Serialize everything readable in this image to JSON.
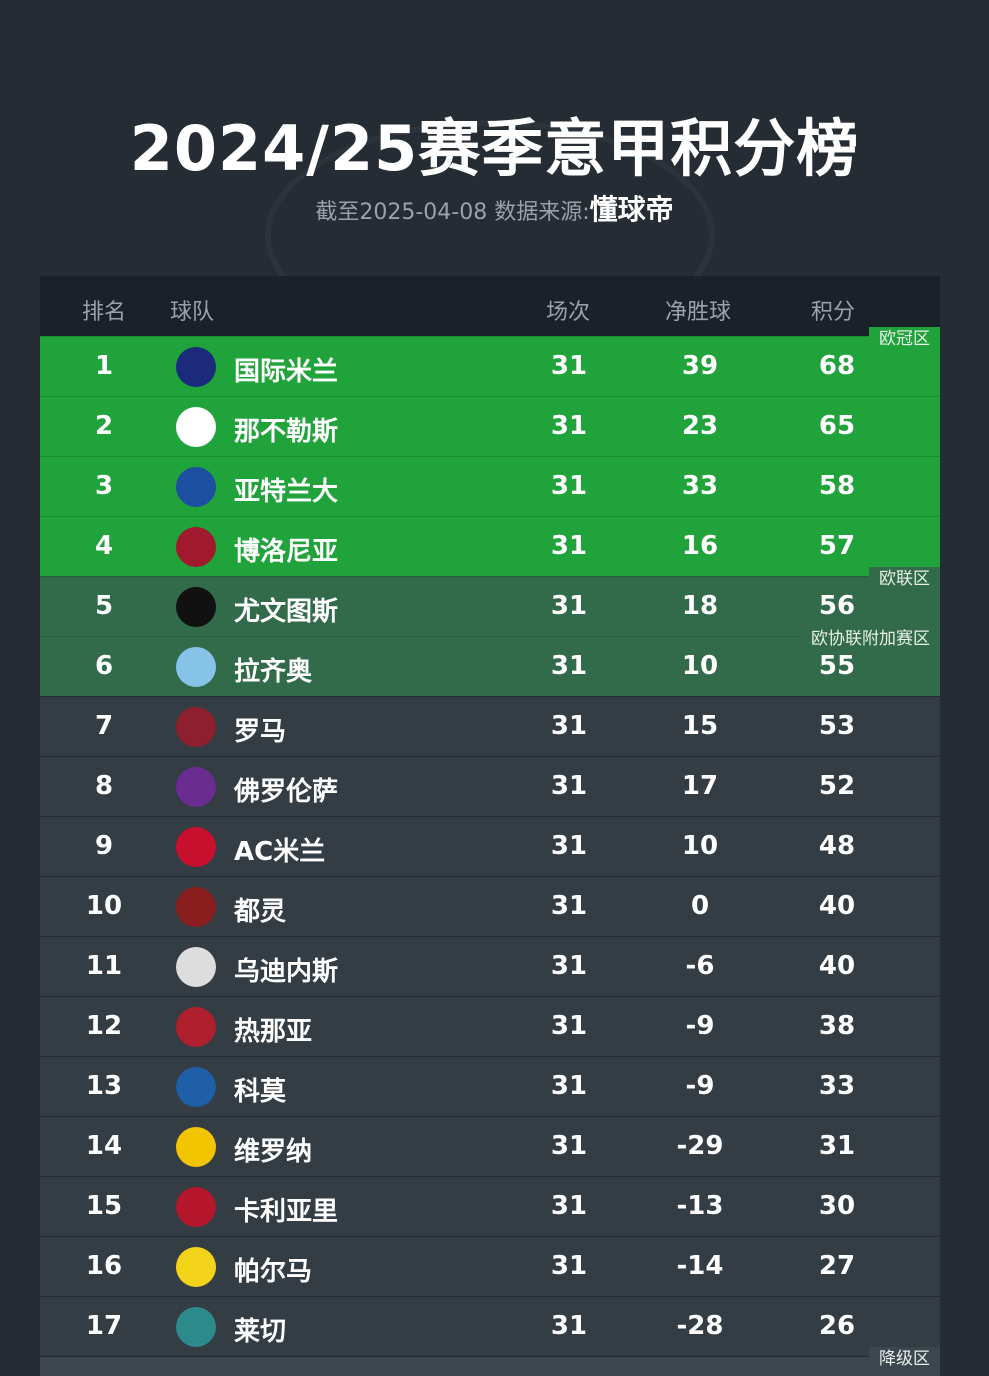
{
  "title": "2024/25赛季意甲积分榜",
  "subtitle": {
    "prefix": "截至2025-04-08 数据来源:",
    "source": "懂球帝"
  },
  "columns": {
    "rank": "排名",
    "team": "球队",
    "played": "场次",
    "gd": "净胜球",
    "points": "积分"
  },
  "zones": {
    "cl": "欧冠区",
    "el": "欧联区",
    "conf": "欧协联附加赛区",
    "rel": "降级区"
  },
  "colors": {
    "cl": "#20a33a",
    "el": "#316b4a",
    "row": "#343c44",
    "header": "#1b2128"
  },
  "rows": [
    {
      "rank": "1",
      "team": "国际米兰",
      "played": "31",
      "gd": "39",
      "pts": "68",
      "logo": "inter-logo",
      "color": "#1b2a7a"
    },
    {
      "rank": "2",
      "team": "那不勒斯",
      "played": "31",
      "gd": "23",
      "pts": "65",
      "logo": "napoli-logo",
      "color": "#ffffff"
    },
    {
      "rank": "3",
      "team": "亚特兰大",
      "played": "31",
      "gd": "33",
      "pts": "58",
      "logo": "atalanta-logo",
      "color": "#1c4fa0"
    },
    {
      "rank": "4",
      "team": "博洛尼亚",
      "played": "31",
      "gd": "16",
      "pts": "57",
      "logo": "bologna-logo",
      "color": "#a1192c"
    },
    {
      "rank": "5",
      "team": "尤文图斯",
      "played": "31",
      "gd": "18",
      "pts": "56",
      "logo": "juventus-logo",
      "color": "#111111"
    },
    {
      "rank": "6",
      "team": "拉齐奥",
      "played": "31",
      "gd": "10",
      "pts": "55",
      "logo": "lazio-logo",
      "color": "#87c3e8"
    },
    {
      "rank": "7",
      "team": "罗马",
      "played": "31",
      "gd": "15",
      "pts": "53",
      "logo": "roma-logo",
      "color": "#8e1f2f"
    },
    {
      "rank": "8",
      "team": "佛罗伦萨",
      "played": "31",
      "gd": "17",
      "pts": "52",
      "logo": "fiorentina-logo",
      "color": "#6a2c91"
    },
    {
      "rank": "9",
      "team": "AC米兰",
      "played": "31",
      "gd": "10",
      "pts": "48",
      "logo": "milan-logo",
      "color": "#c8102e"
    },
    {
      "rank": "10",
      "team": "都灵",
      "played": "31",
      "gd": "0",
      "pts": "40",
      "logo": "torino-logo",
      "color": "#8a1e1e"
    },
    {
      "rank": "11",
      "team": "乌迪内斯",
      "played": "31",
      "gd": "-6",
      "pts": "40",
      "logo": "udinese-logo",
      "color": "#dddddd"
    },
    {
      "rank": "12",
      "team": "热那亚",
      "played": "31",
      "gd": "-9",
      "pts": "38",
      "logo": "genoa-logo",
      "color": "#b01f2e"
    },
    {
      "rank": "13",
      "team": "科莫",
      "played": "31",
      "gd": "-9",
      "pts": "33",
      "logo": "como-logo",
      "color": "#1e5fa8"
    },
    {
      "rank": "14",
      "team": "维罗纳",
      "played": "31",
      "gd": "-29",
      "pts": "31",
      "logo": "verona-logo",
      "color": "#f2c500"
    },
    {
      "rank": "15",
      "team": "卡利亚里",
      "played": "31",
      "gd": "-13",
      "pts": "30",
      "logo": "cagliari-logo",
      "color": "#b5162b"
    },
    {
      "rank": "16",
      "team": "帕尔马",
      "played": "31",
      "gd": "-14",
      "pts": "27",
      "logo": "parma-logo",
      "color": "#f3d21a"
    },
    {
      "rank": "17",
      "team": "莱切",
      "played": "31",
      "gd": "-28",
      "pts": "26",
      "logo": "lecce-logo",
      "color": "#2d8a8a"
    }
  ]
}
